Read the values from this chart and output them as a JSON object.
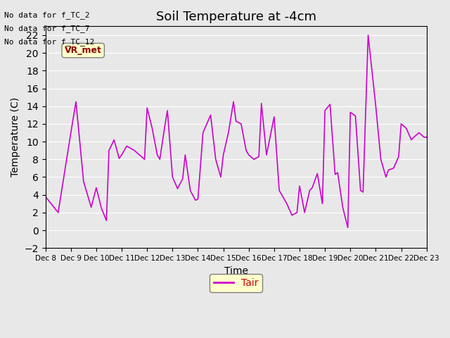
{
  "title": "Soil Temperature at -4cm",
  "xlabel": "Time",
  "ylabel": "Temperature (C)",
  "ylim": [
    -2,
    23
  ],
  "yticks": [
    -2,
    0,
    2,
    4,
    6,
    8,
    10,
    12,
    14,
    16,
    18,
    20,
    22
  ],
  "line_color": "#CC00CC",
  "line_width": 1.2,
  "legend_label": "Tair",
  "background_color": "#E8E8E8",
  "plot_bg_color": "#E8E8E8",
  "annotations": [
    "No data for f_TC_2",
    "No data for f_TC_7",
    "No data for f_TC_12"
  ],
  "legend_box_color": "#FFFFCC",
  "legend_text_color": "#CC0000",
  "xtick_labels": [
    "Dec 8",
    "Dec 9",
    "Dec 10",
    "Dec 11",
    "Dec 12",
    "Dec 13",
    "Dec 14",
    "Dec 15",
    "Dec 16",
    "Dec 17",
    "Dec 18",
    "Dec 19",
    "Dec 20",
    "Dec 21",
    "Dec 22",
    "Dec 23"
  ],
  "x_values": [
    0,
    0.5,
    1.0,
    1.2,
    1.5,
    1.8,
    2.0,
    2.2,
    2.4,
    2.5,
    2.7,
    2.9,
    3.0,
    3.2,
    3.5,
    3.7,
    3.9,
    4.0,
    4.2,
    4.4,
    4.5,
    4.7,
    4.8,
    5.0,
    5.2,
    5.4,
    5.5,
    5.7,
    5.9,
    6.0,
    6.2,
    6.5,
    6.7,
    6.9,
    7.0,
    7.2,
    7.4,
    7.5,
    7.7,
    7.9,
    8.0,
    8.2,
    8.4,
    8.5,
    8.7,
    9.0,
    9.2,
    9.5,
    9.7,
    9.9,
    10.0,
    10.2,
    10.4,
    10.5,
    10.7,
    10.9,
    11.0,
    11.2,
    11.4,
    11.5,
    11.7,
    11.9,
    12.0,
    12.2,
    12.4,
    12.5,
    12.7,
    13.0,
    13.2,
    13.4,
    13.5,
    13.7,
    13.9,
    14.0,
    14.2,
    14.4,
    14.5,
    14.7,
    14.9,
    15.0
  ],
  "y_values": [
    3.8,
    2.0,
    11.0,
    14.5,
    5.5,
    2.6,
    4.8,
    2.5,
    1.1,
    9.0,
    10.2,
    8.1,
    8.5,
    9.5,
    9.0,
    8.5,
    8.0,
    13.8,
    11.5,
    8.5,
    8.0,
    11.8,
    13.5,
    6.0,
    4.7,
    5.8,
    8.5,
    4.5,
    3.4,
    3.5,
    11.0,
    13.0,
    8.0,
    6.0,
    8.5,
    11.0,
    14.5,
    12.3,
    12.0,
    9.0,
    8.5,
    8.0,
    8.3,
    14.3,
    8.5,
    12.8,
    4.5,
    3.0,
    1.7,
    2.0,
    5.0,
    2.0,
    4.5,
    4.8,
    6.4,
    3.0,
    13.5,
    14.2,
    6.3,
    6.5,
    2.6,
    0.3,
    13.3,
    12.9,
    4.5,
    4.3,
    22.0,
    14.0,
    8.0,
    6.0,
    6.8,
    7.0,
    8.3,
    12.0,
    11.5,
    10.2,
    10.5,
    11.0,
    10.5,
    10.5
  ]
}
